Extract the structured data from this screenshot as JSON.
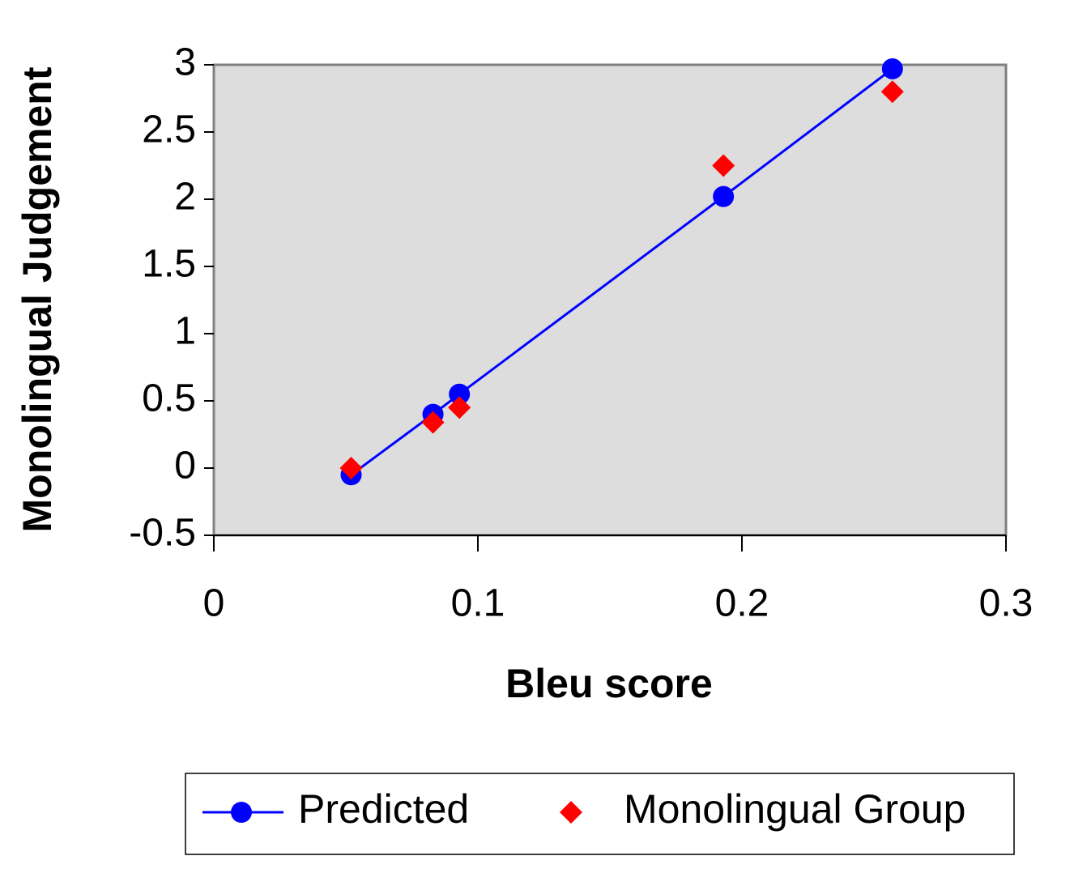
{
  "chart_data": {
    "type": "scatter",
    "x_label": "Bleu score",
    "y_label": "Monolingual Judgement",
    "x": [
      0.052,
      0.083,
      0.093,
      0.193,
      0.257
    ],
    "series": [
      {
        "name": "Predicted",
        "color": "#0000ff",
        "marker": "circle",
        "line": true,
        "values": [
          -0.05,
          0.4,
          0.55,
          2.02,
          2.97
        ]
      },
      {
        "name": "Monolingual Group",
        "color": "#ff0000",
        "marker": "diamond",
        "line": false,
        "values": [
          0.0,
          0.34,
          0.45,
          2.25,
          2.8
        ]
      }
    ],
    "xlim": [
      0,
      0.3
    ],
    "xticks": [
      0,
      0.1,
      0.2,
      0.3
    ],
    "ylim": [
      -0.5,
      3
    ],
    "yticks": [
      -0.5,
      0,
      0.5,
      1,
      1.5,
      2,
      2.5,
      3
    ],
    "plot_background": "#dddddd",
    "legend": "bottom"
  }
}
